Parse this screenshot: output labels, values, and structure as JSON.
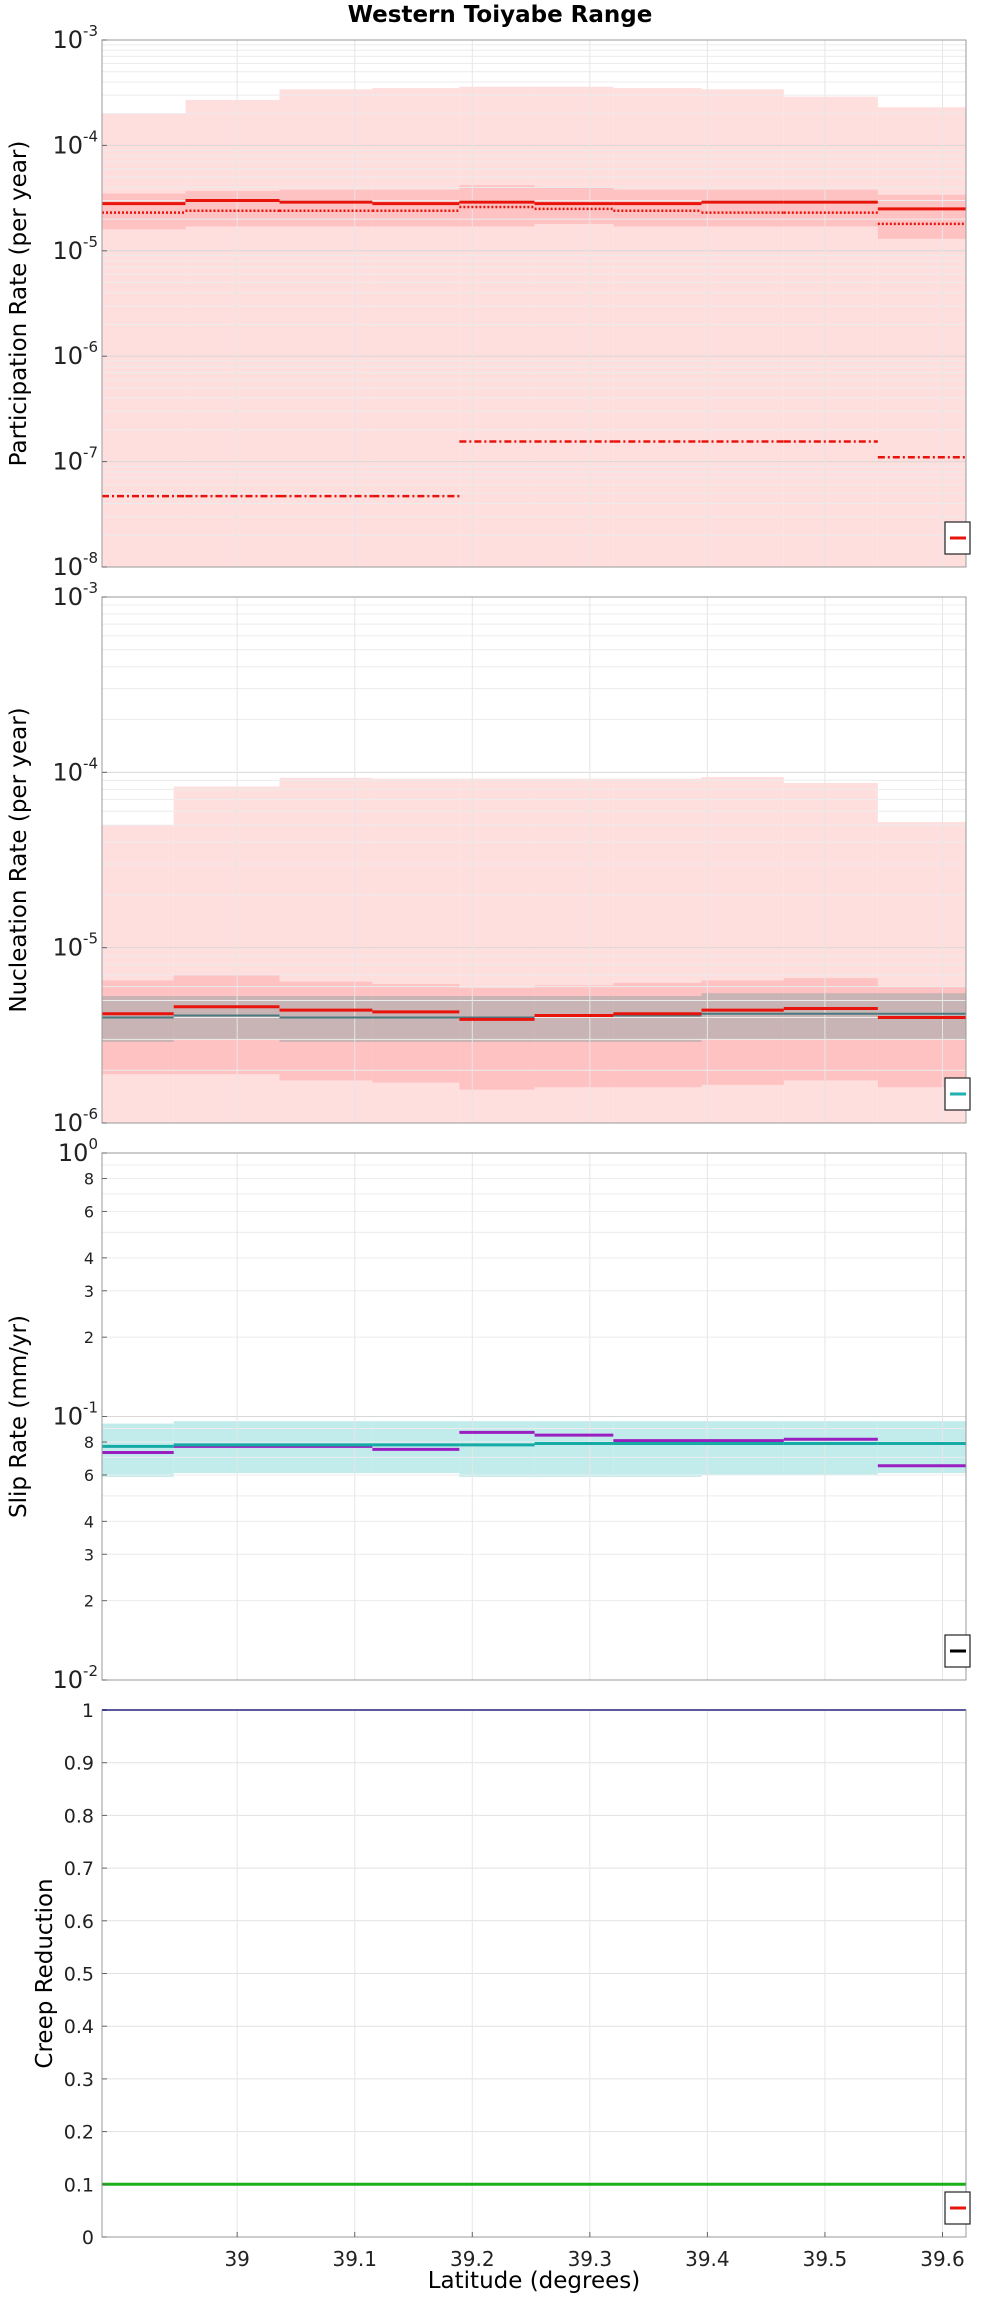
{
  "figure": {
    "title": "Western Toiyabe Range",
    "xlabel": "Latitude (degrees)"
  },
  "chart_data": [
    {
      "type": "line",
      "panel": "participation",
      "title": "Western Toiyabe Range",
      "ylabel": "Participation Rate (per year)",
      "yscale": "log",
      "ylim": [
        1e-08,
        0.001
      ],
      "xlim": [
        38.885,
        39.62
      ],
      "ytick_labels": [
        {
          "base": "10",
          "exp": "-8",
          "value": 1e-08
        },
        {
          "base": "10",
          "exp": "-7",
          "value": 1e-07
        },
        {
          "base": "10",
          "exp": "-6",
          "value": 1e-06
        },
        {
          "base": "10",
          "exp": "-5",
          "value": 1e-05
        },
        {
          "base": "10",
          "exp": "-4",
          "value": 0.0001
        },
        {
          "base": "10",
          "exp": "-3",
          "value": 0.001
        }
      ],
      "grid": true,
      "legend": "bottom-right (cut off)",
      "x_edges": [
        38.885,
        38.956,
        39.036,
        39.115,
        39.189,
        39.253,
        39.32,
        39.395,
        39.465,
        39.545,
        39.62
      ],
      "bands": [
        {
          "color": "#ffdede",
          "lower": [
            1e-08,
            1e-08,
            1e-08,
            1e-08,
            1e-08,
            1e-08,
            1e-08,
            1e-08,
            1e-08,
            1e-08
          ],
          "upper": [
            0.0002,
            0.00027,
            0.00034,
            0.00035,
            0.00036,
            0.00036,
            0.00035,
            0.00034,
            0.00029,
            0.00023
          ]
        },
        {
          "color": "#ffc2c2",
          "lower": [
            1.6e-05,
            1.7e-05,
            1.7e-05,
            1.7e-05,
            1.7e-05,
            1.8e-05,
            1.7e-05,
            1.7e-05,
            1.7e-05,
            1.3e-05
          ],
          "upper": [
            3.5e-05,
            3.7e-05,
            3.8e-05,
            3.8e-05,
            4.2e-05,
            4e-05,
            3.8e-05,
            3.8e-05,
            3.8e-05,
            3.4e-05
          ]
        }
      ],
      "series": [
        {
          "color": "#e8140c",
          "style": "solid",
          "width": 3,
          "values": [
            2.8e-05,
            3e-05,
            2.9e-05,
            2.8e-05,
            2.9e-05,
            2.8e-05,
            2.8e-05,
            2.9e-05,
            2.9e-05,
            2.5e-05
          ]
        },
        {
          "color": "#e8140c",
          "style": "dotted",
          "width": 2.5,
          "values": [
            2.3e-05,
            2.4e-05,
            2.4e-05,
            2.4e-05,
            2.6e-05,
            2.5e-05,
            2.4e-05,
            2.3e-05,
            2.3e-05,
            1.8e-05
          ]
        },
        {
          "color": "#e8140c",
          "style": "dashdot",
          "width": 2.5,
          "values": [
            4.7e-08,
            4.7e-08,
            4.7e-08,
            4.7e-08,
            1.55e-07,
            1.55e-07,
            1.55e-07,
            1.55e-07,
            1.55e-07,
            1.1e-07
          ]
        }
      ],
      "legend_swatch_color": "#e8140c"
    },
    {
      "type": "line",
      "panel": "nucleation",
      "ylabel": "Nucleation Rate (per year)",
      "yscale": "log",
      "ylim": [
        1e-06,
        0.001
      ],
      "xlim": [
        38.885,
        39.62
      ],
      "ytick_labels": [
        {
          "base": "10",
          "exp": "-6",
          "value": 1e-06
        },
        {
          "base": "10",
          "exp": "-5",
          "value": 1e-05
        },
        {
          "base": "10",
          "exp": "-4",
          "value": 0.0001
        },
        {
          "base": "10",
          "exp": "-3",
          "value": 0.001
        }
      ],
      "grid": true,
      "legend": "bottom-right (cut off)",
      "x_edges": [
        38.885,
        38.946,
        39.036,
        39.115,
        39.189,
        39.253,
        39.32,
        39.395,
        39.465,
        39.545,
        39.62
      ],
      "bands": [
        {
          "color": "#ffdede",
          "lower": [
            1e-06,
            1e-06,
            1e-06,
            1e-06,
            1e-06,
            1e-06,
            1e-06,
            1e-06,
            1e-06,
            1e-06
          ],
          "upper": [
            5e-05,
            8.3e-05,
            9.3e-05,
            9.2e-05,
            9.2e-05,
            9.2e-05,
            9.2e-05,
            9.4e-05,
            8.7e-05,
            5.2e-05
          ]
        },
        {
          "color": "#ffc2c2",
          "lower": [
            1.9e-06,
            1.9e-06,
            1.75e-06,
            1.7e-06,
            1.55e-06,
            1.6e-06,
            1.6e-06,
            1.65e-06,
            1.75e-06,
            1.6e-06
          ],
          "upper": [
            6.5e-06,
            7e-06,
            6.4e-06,
            6.2e-06,
            5.9e-06,
            6.1e-06,
            6.3e-06,
            6.5e-06,
            6.7e-06,
            6e-06
          ]
        },
        {
          "color": "#c8b4b4",
          "lower": [
            2.9e-06,
            3e-06,
            2.9e-06,
            2.9e-06,
            2.9e-06,
            2.9e-06,
            2.9e-06,
            3e-06,
            3e-06,
            3e-06
          ],
          "upper": [
            5.3e-06,
            5.3e-06,
            5.3e-06,
            5.3e-06,
            5.3e-06,
            5.3e-06,
            5.3e-06,
            5.5e-06,
            5.5e-06,
            5.5e-06
          ]
        }
      ],
      "series": [
        {
          "color": "#4a7a80",
          "style": "solid",
          "width": 2,
          "values": [
            4e-06,
            4.1e-06,
            4e-06,
            4e-06,
            4e-06,
            4.1e-06,
            4.1e-06,
            4.2e-06,
            4.2e-06,
            4.2e-06
          ]
        },
        {
          "color": "#e8140c",
          "style": "solid",
          "width": 3,
          "values": [
            4.2e-06,
            4.6e-06,
            4.4e-06,
            4.3e-06,
            3.9e-06,
            4.1e-06,
            4.2e-06,
            4.4e-06,
            4.5e-06,
            4e-06
          ]
        }
      ],
      "legend_swatch_color": "#20b2b2"
    },
    {
      "type": "line",
      "panel": "slip",
      "ylabel": "Slip Rate (mm/yr)",
      "yscale": "log",
      "ylim": [
        0.01,
        1
      ],
      "xlim": [
        38.885,
        39.62
      ],
      "ytick_labels": [
        {
          "base": "10",
          "exp": "-2",
          "value": 0.01
        },
        {
          "base": "2",
          "exp": "",
          "value": 0.02
        },
        {
          "base": "3",
          "exp": "",
          "value": 0.03
        },
        {
          "base": "4",
          "exp": "",
          "value": 0.04
        },
        {
          "base": "6",
          "exp": "",
          "value": 0.06
        },
        {
          "base": "8",
          "exp": "",
          "value": 0.08
        },
        {
          "base": "10",
          "exp": "-1",
          "value": 0.1
        },
        {
          "base": "2",
          "exp": "",
          "value": 0.2
        },
        {
          "base": "3",
          "exp": "",
          "value": 0.3
        },
        {
          "base": "4",
          "exp": "",
          "value": 0.4
        },
        {
          "base": "6",
          "exp": "",
          "value": 0.6
        },
        {
          "base": "8",
          "exp": "",
          "value": 0.8
        },
        {
          "base": "10",
          "exp": "0",
          "value": 1
        }
      ],
      "grid": true,
      "legend": "bottom-right (cut off)",
      "x_edges": [
        38.885,
        38.946,
        39.036,
        39.115,
        39.189,
        39.253,
        39.32,
        39.395,
        39.465,
        39.545,
        39.62
      ],
      "bands": [
        {
          "color": "#c2ecec",
          "lower": [
            0.059,
            0.061,
            0.061,
            0.061,
            0.059,
            0.059,
            0.059,
            0.06,
            0.06,
            0.061
          ],
          "upper": [
            0.094,
            0.096,
            0.096,
            0.096,
            0.096,
            0.096,
            0.096,
            0.096,
            0.096,
            0.096
          ]
        }
      ],
      "series": [
        {
          "color": "#9a1fc0",
          "style": "solid",
          "width": 3,
          "values": [
            0.073,
            0.077,
            0.077,
            0.075,
            0.087,
            0.085,
            0.081,
            0.081,
            0.082,
            0.065
          ]
        },
        {
          "color": "#16aaa4",
          "style": "solid",
          "width": 3,
          "values": [
            0.077,
            0.078,
            0.078,
            0.078,
            0.078,
            0.079,
            0.079,
            0.079,
            0.079,
            0.079
          ]
        }
      ],
      "legend_swatch_color": "#000000"
    },
    {
      "type": "line",
      "panel": "creep",
      "ylabel": "Creep Reduction",
      "yscale": "linear",
      "ylim": [
        0,
        1
      ],
      "xlim": [
        38.885,
        39.62
      ],
      "ytick_labels": [
        {
          "base": "0",
          "exp": "",
          "value": 0
        },
        {
          "base": "0.1",
          "exp": "",
          "value": 0.1
        },
        {
          "base": "0.2",
          "exp": "",
          "value": 0.2
        },
        {
          "base": "0.3",
          "exp": "",
          "value": 0.3
        },
        {
          "base": "0.4",
          "exp": "",
          "value": 0.4
        },
        {
          "base": "0.5",
          "exp": "",
          "value": 0.5
        },
        {
          "base": "0.6",
          "exp": "",
          "value": 0.6
        },
        {
          "base": "0.7",
          "exp": "",
          "value": 0.7
        },
        {
          "base": "0.8",
          "exp": "",
          "value": 0.8
        },
        {
          "base": "0.9",
          "exp": "",
          "value": 0.9
        },
        {
          "base": "1",
          "exp": "",
          "value": 1
        }
      ],
      "xtick_labels": [
        "39",
        "39.1",
        "39.2",
        "39.3",
        "39.4",
        "39.5",
        "39.6"
      ],
      "xtick_values": [
        39,
        39.1,
        39.2,
        39.3,
        39.4,
        39.5,
        39.6
      ],
      "grid": true,
      "legend": "bottom-right (cut off)",
      "x_edges": [
        38.885,
        39.62
      ],
      "bands": [],
      "series": [
        {
          "color": "#1a1aa0",
          "style": "solid",
          "width": 2,
          "values": [
            1.0
          ]
        },
        {
          "color": "#18b018",
          "style": "solid",
          "width": 3,
          "values": [
            0.1
          ]
        }
      ],
      "legend_swatch_color": "#e8140c"
    }
  ]
}
